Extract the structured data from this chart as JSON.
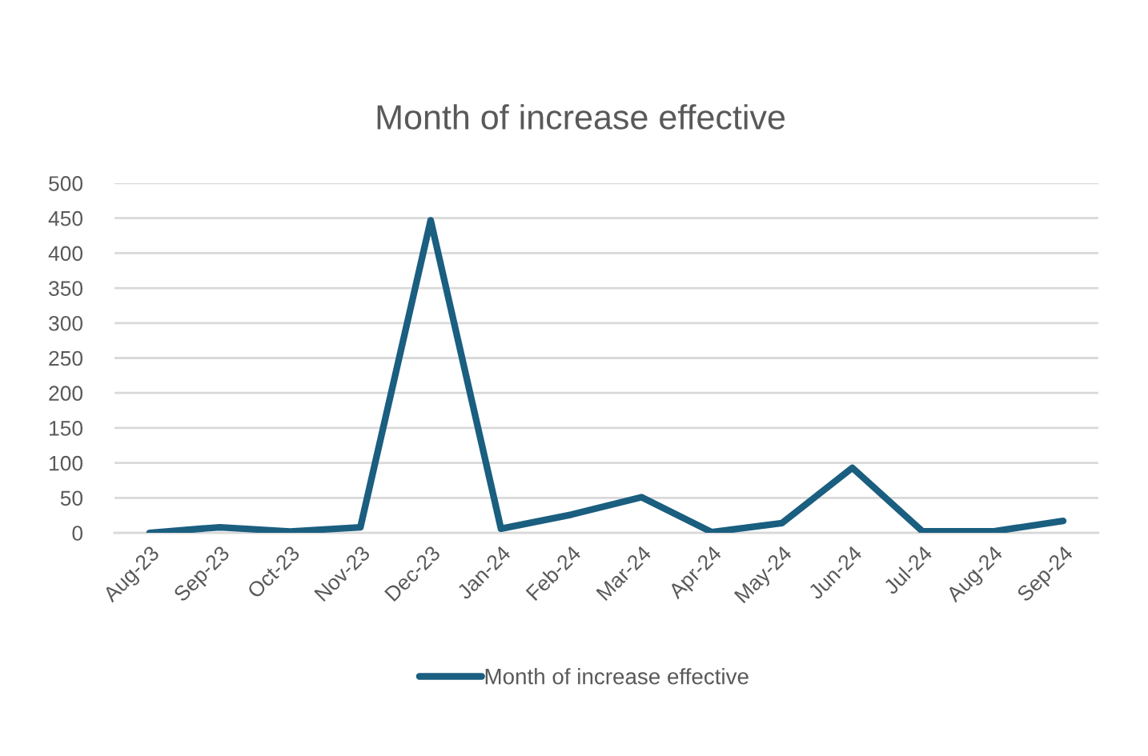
{
  "chart_data": {
    "type": "line",
    "title": "Month of increase effective",
    "categories": [
      "Aug-23",
      "Sep-23",
      "Oct-23",
      "Nov-23",
      "Dec-23",
      "Jan-24",
      "Feb-24",
      "Mar-24",
      "Apr-24",
      "May-24",
      "Jun-24",
      "Jul-24",
      "Aug-24",
      "Sep-24"
    ],
    "series": [
      {
        "name": "Month of increase effective",
        "color": "#1a5e80",
        "values": [
          0,
          8,
          2,
          8,
          447,
          6,
          26,
          51,
          1,
          14,
          93,
          2,
          2,
          17
        ]
      }
    ],
    "ylim": [
      0,
      500
    ],
    "yticks": [
      0,
      50,
      100,
      150,
      200,
      250,
      300,
      350,
      400,
      450,
      500
    ],
    "grid": "y",
    "legend": "bottom",
    "line_style": "solid"
  }
}
